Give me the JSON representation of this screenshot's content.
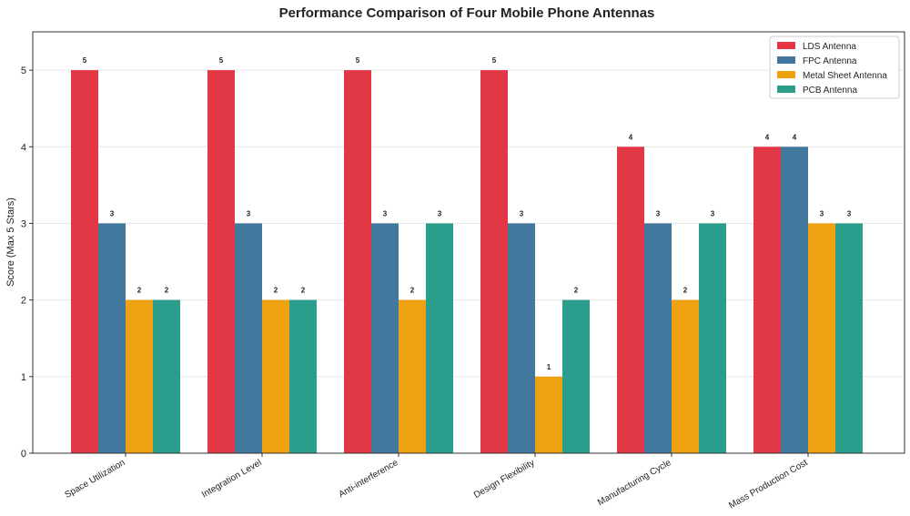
{
  "chart_data": {
    "type": "bar",
    "title": "Performance Comparison of Four Mobile Phone Antennas",
    "xlabel": "",
    "ylabel": "Score (Max 5 Stars)",
    "ylim": [
      0,
      5.5
    ],
    "yticks": [
      0,
      1,
      2,
      3,
      4,
      5
    ],
    "grid": true,
    "legend_position": "top-right",
    "categories": [
      "Space Utilization",
      "Integration Level",
      "Anti-interference",
      "Design Flexibility",
      "Manufacturing Cycle",
      "Mass Production Cost"
    ],
    "series": [
      {
        "name": "LDS Antenna",
        "color": "#e23744",
        "values": [
          5,
          5,
          5,
          5,
          4,
          4
        ]
      },
      {
        "name": "FPC Antenna",
        "color": "#43789e",
        "values": [
          3,
          3,
          3,
          3,
          3,
          4
        ]
      },
      {
        "name": "Metal Sheet Antenna",
        "color": "#eea111",
        "values": [
          2,
          2,
          2,
          1,
          2,
          3
        ]
      },
      {
        "name": "PCB Antenna",
        "color": "#2a9d8c",
        "values": [
          2,
          2,
          3,
          2,
          3,
          3
        ]
      }
    ]
  }
}
